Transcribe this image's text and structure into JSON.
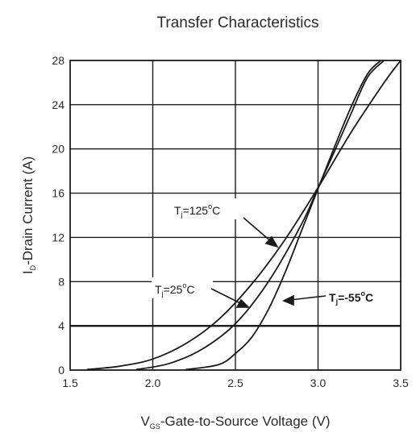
{
  "chart_data": {
    "type": "line",
    "title": "Transfer Characteristics",
    "xlabel": {
      "main": "V",
      "sub": "GS",
      "rest": "-Gate-to-Source Voltage (V)"
    },
    "ylabel": {
      "main": "I",
      "sub": "D",
      "rest": "-Drain Current (A)"
    },
    "xlim": [
      1.5,
      3.5
    ],
    "ylim": [
      0,
      28
    ],
    "xticks": [
      1.5,
      2.0,
      2.5,
      3.0,
      3.5
    ],
    "xtick_labels": [
      "1.5",
      "2.0",
      "2.5",
      "3.0",
      "3.5"
    ],
    "yticks": [
      0,
      4,
      8,
      12,
      16,
      20,
      24,
      28
    ],
    "ytick_labels": [
      "0",
      "4",
      "8",
      "12",
      "16",
      "20",
      "24",
      "28"
    ],
    "grid": true,
    "series": [
      {
        "name": "Tj=125°C",
        "x": [
          1.6,
          1.8,
          2.0,
          2.2,
          2.4,
          2.6,
          2.8,
          3.0,
          3.2,
          3.4,
          3.5
        ],
        "y": [
          0.05,
          0.35,
          1.0,
          2.4,
          4.6,
          7.8,
          11.8,
          16.5,
          21.5,
          26.0,
          28.0
        ]
      },
      {
        "name": "Tj=25°C",
        "x": [
          1.9,
          2.1,
          2.3,
          2.5,
          2.7,
          2.9,
          3.0,
          3.1,
          3.2,
          3.3,
          3.4
        ],
        "y": [
          0.05,
          0.6,
          1.9,
          4.2,
          8.0,
          13.2,
          16.5,
          19.8,
          23.2,
          26.5,
          28.0
        ]
      },
      {
        "name": "Tj=-55°C",
        "x": [
          2.2,
          2.4,
          2.5,
          2.6,
          2.7,
          2.8,
          2.9,
          3.0,
          3.1,
          3.2,
          3.3,
          3.38
        ],
        "y": [
          0.05,
          0.5,
          1.5,
          3.0,
          5.5,
          8.8,
          12.6,
          16.4,
          20.2,
          23.8,
          26.8,
          28.0
        ]
      }
    ],
    "annotations": [
      {
        "main": "T",
        "sub": "j",
        "rest": "=125",
        "deg": "o",
        "unit": "C"
      },
      {
        "main": "T",
        "sub": "j",
        "rest": "=25",
        "deg": "o",
        "unit": "C"
      },
      {
        "main": "T",
        "sub": "j",
        "rest": "=-55",
        "deg": "o",
        "unit": "C"
      }
    ]
  }
}
